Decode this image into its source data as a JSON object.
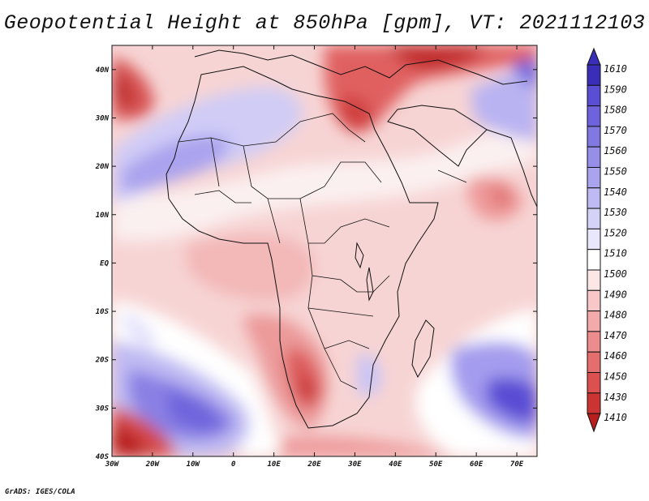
{
  "title": "Geopotential Height at 850hPa [gpm], VT: 2021112103",
  "credit": "GrADS: IGES/COLA",
  "map": {
    "lon_ticks": [
      "30W",
      "20W",
      "10W",
      "0",
      "10E",
      "20E",
      "30E",
      "40E",
      "50E",
      "60E",
      "70E"
    ],
    "lat_ticks": [
      "40N",
      "30N",
      "20N",
      "10N",
      "EQ",
      "10S",
      "20S",
      "30S",
      "40S"
    ],
    "lon_range": [
      -30,
      75
    ],
    "lat_range": [
      -40,
      45
    ]
  },
  "legend": {
    "levels": [
      "1610",
      "1590",
      "1580",
      "1570",
      "1560",
      "1550",
      "1540",
      "1530",
      "1520",
      "1510",
      "1500",
      "1490",
      "1480",
      "1470",
      "1460",
      "1450",
      "1430",
      "1410"
    ],
    "colors": [
      "#3a2eb8",
      "#5a4ed4",
      "#6e63dc",
      "#8278e2",
      "#968ee8",
      "#aaa3ee",
      "#bfbaf3",
      "#d5d2f8",
      "#e8e7fc",
      "#ffffff",
      "#fde6e6",
      "#f8c8c8",
      "#f2aaaa",
      "#ec8c8c",
      "#e46e6e",
      "#dc5050",
      "#cc3434",
      "#b81e1e"
    ]
  }
}
